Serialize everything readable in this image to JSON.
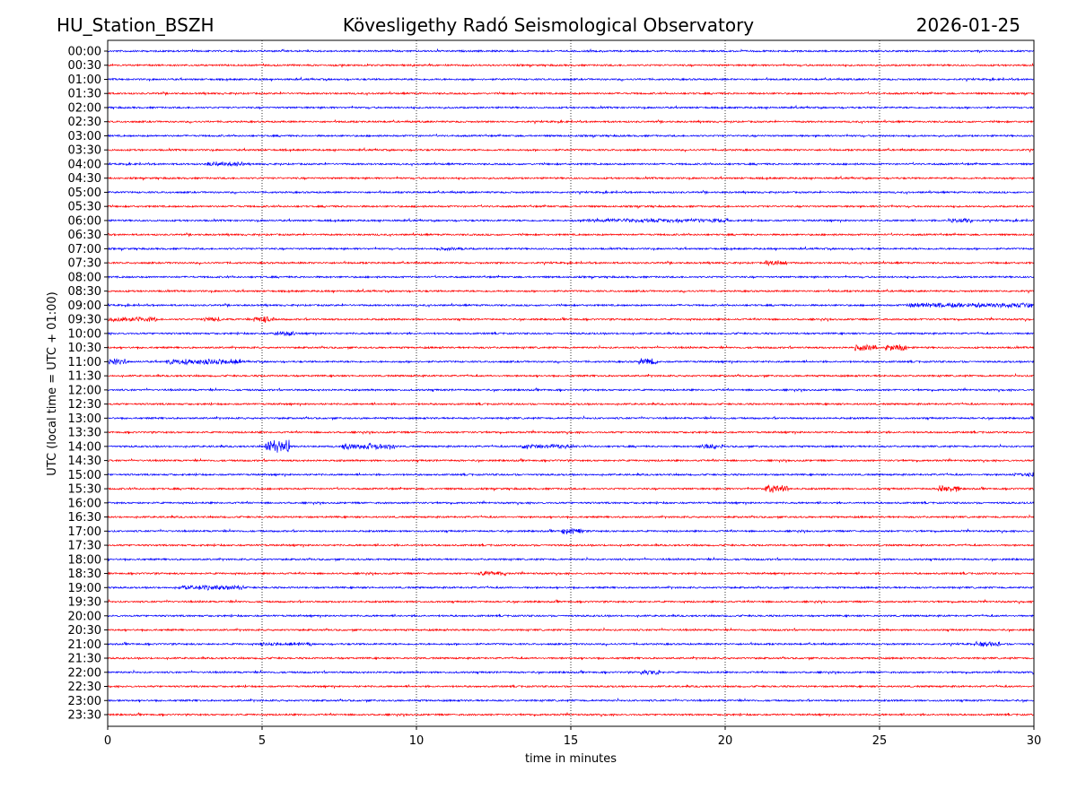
{
  "chart_data": {
    "type": "line",
    "title_left": "HU_Station_BSZH",
    "title": "Kövesligethy Radó Seismological Observatory",
    "title_right": "2026-01-25",
    "xlabel": "time in minutes",
    "ylabel": "UTC (local time = UTC + 01:00)",
    "xlim": [
      0,
      30
    ],
    "xticks": [
      "0",
      "5",
      "10",
      "15",
      "20",
      "25",
      "30"
    ],
    "xtick_values": [
      0,
      5,
      10,
      15,
      20,
      25,
      30
    ],
    "grid": "vertical dotted at x ticks",
    "colors": [
      "#0000ff",
      "#ff0000"
    ],
    "rows": [
      "00:00",
      "00:30",
      "01:00",
      "01:30",
      "02:00",
      "02:30",
      "03:00",
      "03:30",
      "04:00",
      "04:30",
      "05:00",
      "05:30",
      "06:00",
      "06:30",
      "07:00",
      "07:30",
      "08:00",
      "08:30",
      "09:00",
      "09:30",
      "10:00",
      "10:30",
      "11:00",
      "11:30",
      "12:00",
      "12:30",
      "13:00",
      "13:30",
      "14:00",
      "14:30",
      "15:00",
      "15:30",
      "16:00",
      "16:30",
      "17:00",
      "17:30",
      "18:00",
      "18:30",
      "19:00",
      "19:30",
      "20:00",
      "20:30",
      "21:00",
      "21:30",
      "22:00",
      "22:30",
      "23:00",
      "23:30"
    ],
    "events": [
      {
        "row": "04:00",
        "start": 3.3,
        "end": 4.3,
        "amp": 3
      },
      {
        "row": "06:00",
        "start": 15.5,
        "end": 20,
        "amp": 2.5
      },
      {
        "row": "06:00",
        "start": 27.3,
        "end": 27.9,
        "amp": 3
      },
      {
        "row": "07:00",
        "start": 10.8,
        "end": 11.5,
        "amp": 2
      },
      {
        "row": "07:30",
        "start": 21.4,
        "end": 21.9,
        "amp": 3
      },
      {
        "row": "09:00",
        "start": 26,
        "end": 30,
        "amp": 3
      },
      {
        "row": "09:30",
        "start": 0,
        "end": 1.5,
        "amp": 3
      },
      {
        "row": "09:30",
        "start": 3.2,
        "end": 3.6,
        "amp": 3
      },
      {
        "row": "09:30",
        "start": 4.8,
        "end": 5.3,
        "amp": 4
      },
      {
        "row": "10:00",
        "start": 5.5,
        "end": 6,
        "amp": 3
      },
      {
        "row": "10:30",
        "start": 24.3,
        "end": 24.8,
        "amp": 4
      },
      {
        "row": "10:30",
        "start": 25.3,
        "end": 25.8,
        "amp": 4
      },
      {
        "row": "11:00",
        "start": 0,
        "end": 0.5,
        "amp": 4
      },
      {
        "row": "11:00",
        "start": 2,
        "end": 4.3,
        "amp": 3.5
      },
      {
        "row": "11:00",
        "start": 17.3,
        "end": 17.7,
        "amp": 4
      },
      {
        "row": "14:00",
        "start": 5.2,
        "end": 5.8,
        "amp": 8
      },
      {
        "row": "14:00",
        "start": 7.7,
        "end": 9.2,
        "amp": 4
      },
      {
        "row": "14:00",
        "start": 13.4,
        "end": 15,
        "amp": 3
      },
      {
        "row": "14:00",
        "start": 19.2,
        "end": 19.8,
        "amp": 3
      },
      {
        "row": "15:00",
        "start": 29.4,
        "end": 30,
        "amp": 3
      },
      {
        "row": "15:30",
        "start": 21.4,
        "end": 22,
        "amp": 5
      },
      {
        "row": "15:30",
        "start": 27,
        "end": 27.5,
        "amp": 4
      },
      {
        "row": "17:00",
        "start": 14.8,
        "end": 15.3,
        "amp": 4
      },
      {
        "row": "18:30",
        "start": 12.1,
        "end": 12.8,
        "amp": 3
      },
      {
        "row": "19:00",
        "start": 2.4,
        "end": 4.3,
        "amp": 3
      },
      {
        "row": "21:00",
        "start": 5,
        "end": 6.5,
        "amp": 2
      },
      {
        "row": "21:00",
        "start": 28.2,
        "end": 28.8,
        "amp": 3
      },
      {
        "row": "22:00",
        "start": 17.3,
        "end": 17.8,
        "amp": 3
      }
    ]
  }
}
